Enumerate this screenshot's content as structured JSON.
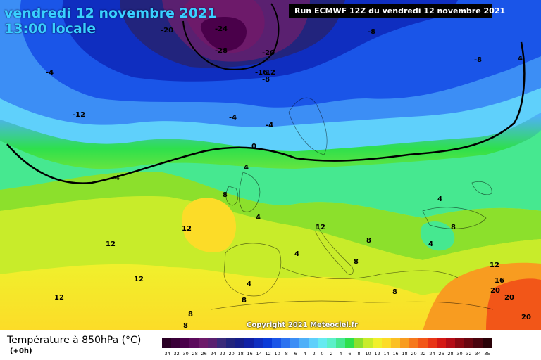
{
  "title": {
    "line1": "vendredi 12 novembre 2021",
    "line2": "13:00 locale"
  },
  "run_label": "Run ECMWF 12Z du vendredi 12 novembre 2021",
  "copyright": "Copyright 2021 Meteociel.fr",
  "legend": {
    "title": "Température à 850hPa (°C)",
    "subtitle": "(+0h)",
    "steps": [
      "-34",
      "-32",
      "-30",
      "-28",
      "-26",
      "-24",
      "-22",
      "-20",
      "-18",
      "-16",
      "-14",
      "-12",
      "-10",
      "-8",
      "-6",
      "-4",
      "-2",
      "0",
      "2",
      "4",
      "6",
      "8",
      "10",
      "12",
      "14",
      "16",
      "18",
      "20",
      "22",
      "24",
      "26",
      "28",
      "30",
      "32",
      "34",
      "35"
    ],
    "colors": [
      "#2a0025",
      "#3a0038",
      "#4a004a",
      "#5c0a5c",
      "#6d1a6a",
      "#5a2070",
      "#3a2a7a",
      "#22247d",
      "#161e8a",
      "#1020a5",
      "#0f2ec0",
      "#0a3ad8",
      "#1a55e8",
      "#2c72f0",
      "#3c8ef5",
      "#4fb0f8",
      "#5fd0fb",
      "#66eaf0",
      "#5cf0c8",
      "#46e890",
      "#2ee04c",
      "#8ce02c",
      "#c8ec2a",
      "#f0f02c",
      "#fcdc28",
      "#fbc024",
      "#f89c20",
      "#f6781c",
      "#f25618",
      "#e83416",
      "#d41814",
      "#b40c16",
      "#8c0812",
      "#6a0610",
      "#4a040e",
      "#2a0208"
    ],
    "label_color": "#000000"
  },
  "isotherm_labels": [
    {
      "text": "-20"
    },
    {
      "text": "-24"
    },
    {
      "text": "-28"
    },
    {
      "text": "-20"
    },
    {
      "text": "-16"
    },
    {
      "text": "12"
    },
    {
      "text": "-8"
    },
    {
      "text": "-8"
    },
    {
      "text": "-8"
    },
    {
      "text": "-4"
    },
    {
      "text": "-12"
    },
    {
      "text": "-4"
    },
    {
      "text": "-4"
    },
    {
      "text": "0"
    },
    {
      "text": "4"
    },
    {
      "text": "4"
    },
    {
      "text": "4"
    },
    {
      "text": "8"
    },
    {
      "text": "12"
    },
    {
      "text": "12"
    },
    {
      "text": "12"
    },
    {
      "text": "4"
    },
    {
      "text": "8"
    },
    {
      "text": "4"
    },
    {
      "text": "8"
    },
    {
      "text": "12"
    },
    {
      "text": "8"
    },
    {
      "text": "8"
    },
    {
      "text": "8"
    },
    {
      "text": "8"
    },
    {
      "text": "12"
    },
    {
      "text": "16"
    },
    {
      "text": "20"
    },
    {
      "text": "20"
    },
    {
      "text": "20"
    },
    {
      "text": "4"
    },
    {
      "text": "4"
    },
    {
      "text": "4"
    },
    {
      "text": "8"
    },
    {
      "text": "12"
    }
  ]
}
